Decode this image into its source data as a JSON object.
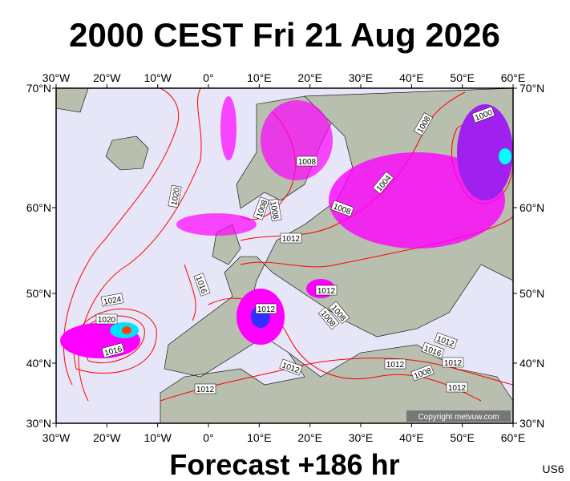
{
  "header": {
    "title": "2000 CEST Fri 21 Aug 2026"
  },
  "footer": {
    "forecast": "Forecast +186 hr",
    "code": "US6"
  },
  "map": {
    "copyright": "Copyright metvuw.com",
    "lon_labels": [
      "30°W",
      "20°W",
      "10°W",
      "0°",
      "10°E",
      "20°E",
      "30°E",
      "40°E",
      "50°E",
      "60°E"
    ],
    "lat_labels": [
      "70°N",
      "60°N",
      "50°N",
      "40°N",
      "30°N"
    ],
    "isobar_labels": [
      "1008",
      "1000",
      "1008",
      "1004",
      "1020",
      "1008",
      "1008",
      "1008",
      "1012",
      "1016",
      "1012",
      "1024",
      "1012",
      "1008",
      "1008",
      "1020",
      "1016",
      "1012",
      "1016",
      "1012",
      "1012",
      "1008",
      "1012",
      "1012",
      "1012"
    ]
  }
}
